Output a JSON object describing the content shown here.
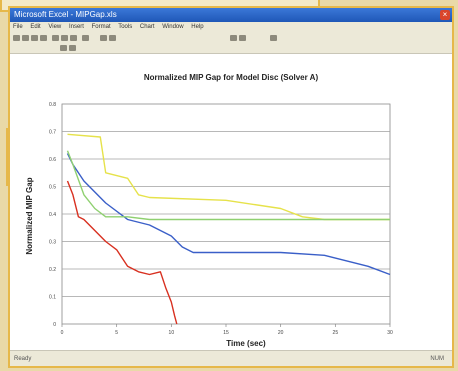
{
  "window": {
    "title": "Microsoft Excel - MIPGap.xls",
    "menu": [
      "File",
      "Edit",
      "View",
      "Insert",
      "Format",
      "Tools",
      "Chart",
      "Window",
      "Help"
    ],
    "status_left": "Ready",
    "status_mid": "",
    "status_right": "NUM"
  },
  "colors": {
    "accent": "#e6b84a",
    "titlebar": "#2a64c8",
    "toolbar": "#ece9d8"
  },
  "chart_data": {
    "type": "line",
    "title": "Normalized MIP Gap for Model Disc (Solver A)",
    "xlabel": "Time (sec)",
    "ylabel": "Normalized MIP Gap",
    "xlim": [
      0,
      30
    ],
    "ylim": [
      0,
      0.8
    ],
    "xticks": [
      "0",
      "5",
      "10",
      "15",
      "20",
      "25",
      "30"
    ],
    "yticks": [
      "0",
      "0.1",
      "0.2",
      "0.3",
      "0.4",
      "0.5",
      "0.6",
      "0.7",
      "0.8"
    ],
    "grid": true,
    "legend": "none",
    "series": [
      {
        "color": "#e6e24a",
        "points": [
          [
            0.5,
            0.69
          ],
          [
            3.5,
            0.68
          ],
          [
            4,
            0.55
          ],
          [
            6,
            0.53
          ],
          [
            7,
            0.47
          ],
          [
            8,
            0.46
          ],
          [
            15,
            0.45
          ],
          [
            20,
            0.42
          ],
          [
            22,
            0.39
          ],
          [
            24,
            0.38
          ],
          [
            30,
            0.38
          ]
        ]
      },
      {
        "color": "#3a5fc8",
        "points": [
          [
            0.5,
            0.62
          ],
          [
            1,
            0.58
          ],
          [
            2,
            0.52
          ],
          [
            4,
            0.44
          ],
          [
            6,
            0.38
          ],
          [
            8,
            0.36
          ],
          [
            10,
            0.32
          ],
          [
            11,
            0.28
          ],
          [
            12,
            0.26
          ],
          [
            20,
            0.26
          ],
          [
            24,
            0.25
          ],
          [
            28,
            0.21
          ],
          [
            30,
            0.18
          ]
        ]
      },
      {
        "color": "#8fd070",
        "points": [
          [
            0.5,
            0.63
          ],
          [
            1,
            0.58
          ],
          [
            2,
            0.47
          ],
          [
            3,
            0.42
          ],
          [
            4,
            0.39
          ],
          [
            6,
            0.39
          ],
          [
            8,
            0.38
          ],
          [
            12,
            0.38
          ],
          [
            30,
            0.38
          ]
        ]
      },
      {
        "color": "#d83020",
        "points": [
          [
            0.5,
            0.52
          ],
          [
            1,
            0.47
          ],
          [
            1.5,
            0.39
          ],
          [
            2,
            0.38
          ],
          [
            3,
            0.34
          ],
          [
            4,
            0.3
          ],
          [
            5,
            0.27
          ],
          [
            6,
            0.21
          ],
          [
            7,
            0.19
          ],
          [
            8,
            0.18
          ],
          [
            9,
            0.19
          ],
          [
            9.5,
            0.13
          ],
          [
            10,
            0.08
          ],
          [
            10.3,
            0.03
          ],
          [
            10.5,
            0.0
          ]
        ]
      }
    ]
  }
}
